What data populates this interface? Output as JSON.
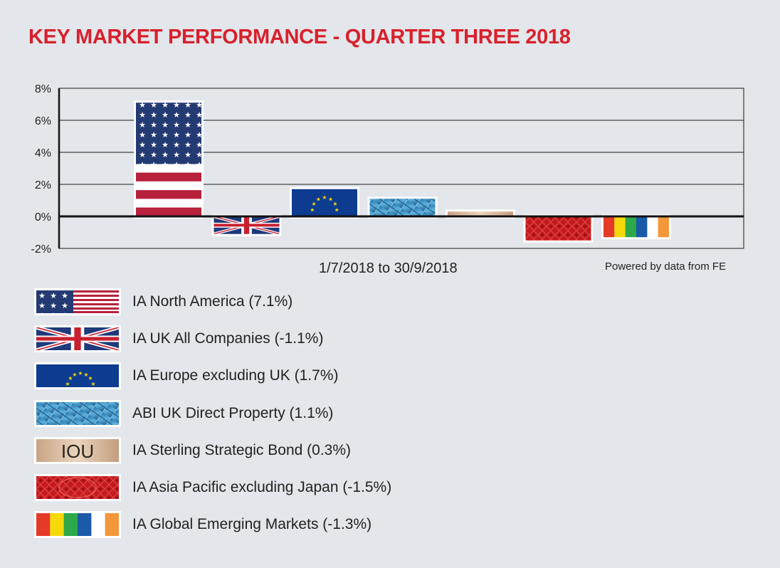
{
  "title": "KEY MARKET PERFORMANCE - QUARTER THREE 2018",
  "date_range": "1/7/2018 to 30/9/2018",
  "powered_by": "Powered by data from FE",
  "colors": {
    "title": "#d8202c",
    "background": "#e3e6ea",
    "us_red": "#b7213b",
    "us_blue": "#243a73",
    "eu_blue": "#0c3b8f",
    "eu_star": "#f6d20c"
  },
  "chart_data": {
    "type": "bar",
    "title": "KEY MARKET PERFORMANCE - QUARTER THREE 2018",
    "xlabel": "1/7/2018 to 30/9/2018",
    "ylabel": "",
    "ylim": [
      -2,
      8
    ],
    "yticks": [
      "8%",
      "6%",
      "4%",
      "2%",
      "0%",
      "-2%"
    ],
    "ytick_values": [
      8,
      6,
      4,
      2,
      0,
      -2
    ],
    "grid": true,
    "legend_position": "bottom",
    "categories": [
      "IA North America",
      "IA UK All Companies",
      "IA Europe excluding UK",
      "ABI UK Direct Property",
      "IA Sterling Strategic Bond",
      "IA Asia Pacific excluding Japan",
      "IA Global Emerging Markets"
    ],
    "values": [
      7.1,
      -1.1,
      1.7,
      1.1,
      0.3,
      -1.5,
      -1.3
    ],
    "pattern_icons": [
      "us-flag-icon",
      "uk-flag-icon",
      "eu-flag-icon",
      "glass-building-icon",
      "iou-note-icon",
      "asian-pattern-icon",
      "color-stripes-icon"
    ]
  },
  "legend": [
    {
      "label": "IA North America (7.1%)",
      "icon": "us-flag-icon"
    },
    {
      "label": "IA UK All Companies (-1.1%)",
      "icon": "uk-flag-icon"
    },
    {
      "label": "IA Europe excluding UK (1.7%)",
      "icon": "eu-flag-icon"
    },
    {
      "label": "ABI UK Direct Property (1.1%)",
      "icon": "glass-building-icon"
    },
    {
      "label": "IA Sterling Strategic Bond (0.3%)",
      "icon": "iou-note-icon",
      "swatch_text": "IOU"
    },
    {
      "label": "IA Asia Pacific excluding Japan (-1.5%)",
      "icon": "asian-pattern-icon"
    },
    {
      "label": "IA Global Emerging Markets (-1.3%)",
      "icon": "color-stripes-icon"
    }
  ]
}
